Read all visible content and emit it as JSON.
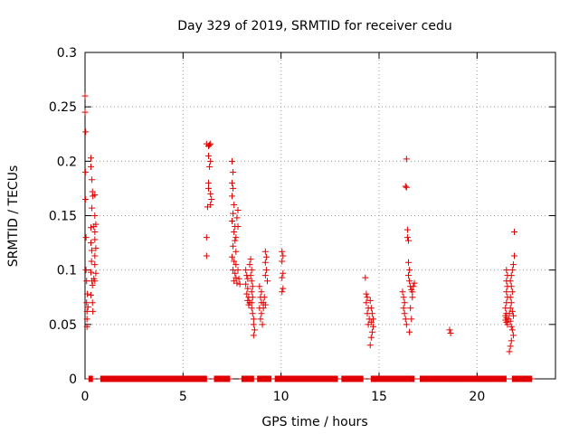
{
  "chart_data": {
    "type": "scatter",
    "title": "Day 329 of 2019, SRMTID for receiver cedu",
    "xlabel": "GPS time / hours",
    "ylabel": "SRMTID / TECUs",
    "xlim": [
      0,
      24
    ],
    "ylim": [
      0,
      0.3
    ],
    "grid": true,
    "xticks": [
      0,
      5,
      10,
      15,
      20
    ],
    "xtick_labels": [
      "0",
      "5",
      "10",
      "15",
      "20"
    ],
    "yticks": [
      0,
      0.05,
      0.1,
      0.15,
      0.2,
      0.25,
      0.3
    ],
    "ytick_labels": [
      "0",
      "0.05",
      "0.1",
      "0.15",
      "0.2",
      "0.25",
      "0.3"
    ],
    "marker": "+",
    "marker_color": "#e00000",
    "series": [
      {
        "name": "SRMTID",
        "points": [
          [
            0.0,
            0.26
          ],
          [
            0.0,
            0.245
          ],
          [
            0.03,
            0.227
          ],
          [
            0.02,
            0.19
          ],
          [
            0.02,
            0.165
          ],
          [
            0.05,
            0.13
          ],
          [
            0.05,
            0.1
          ],
          [
            0.08,
            0.09
          ],
          [
            0.08,
            0.07
          ],
          [
            0.1,
            0.062
          ],
          [
            0.1,
            0.055
          ],
          [
            0.1,
            0.048
          ],
          [
            0.12,
            0.078
          ],
          [
            0.15,
            0.066
          ],
          [
            0.3,
            0.203
          ],
          [
            0.3,
            0.195
          ],
          [
            0.35,
            0.183
          ],
          [
            0.38,
            0.172
          ],
          [
            0.4,
            0.168
          ],
          [
            0.35,
            0.157
          ],
          [
            0.3,
            0.139
          ],
          [
            0.3,
            0.125
          ],
          [
            0.35,
            0.118
          ],
          [
            0.33,
            0.108
          ],
          [
            0.3,
            0.098
          ],
          [
            0.35,
            0.09
          ],
          [
            0.38,
            0.086
          ],
          [
            0.3,
            0.077
          ],
          [
            0.38,
            0.07
          ],
          [
            0.4,
            0.062
          ],
          [
            0.5,
            0.169
          ],
          [
            0.5,
            0.15
          ],
          [
            0.45,
            0.14
          ],
          [
            0.5,
            0.135
          ],
          [
            0.55,
            0.142
          ],
          [
            0.5,
            0.128
          ],
          [
            0.55,
            0.12
          ],
          [
            0.5,
            0.113
          ],
          [
            0.5,
            0.105
          ],
          [
            0.55,
            0.097
          ],
          [
            0.45,
            0.092
          ],
          [
            0.5,
            0.09
          ],
          [
            6.2,
            0.216
          ],
          [
            6.3,
            0.214
          ],
          [
            6.35,
            0.215
          ],
          [
            6.4,
            0.216
          ],
          [
            6.3,
            0.205
          ],
          [
            6.35,
            0.195
          ],
          [
            6.4,
            0.2
          ],
          [
            6.3,
            0.18
          ],
          [
            6.3,
            0.175
          ],
          [
            6.4,
            0.17
          ],
          [
            6.45,
            0.165
          ],
          [
            6.25,
            0.158
          ],
          [
            6.4,
            0.16
          ],
          [
            6.2,
            0.13
          ],
          [
            6.2,
            0.113
          ],
          [
            7.5,
            0.2
          ],
          [
            7.55,
            0.19
          ],
          [
            7.5,
            0.18
          ],
          [
            7.55,
            0.175
          ],
          [
            7.5,
            0.168
          ],
          [
            7.6,
            0.16
          ],
          [
            7.55,
            0.152
          ],
          [
            7.5,
            0.145
          ],
          [
            7.65,
            0.14
          ],
          [
            7.6,
            0.135
          ],
          [
            7.7,
            0.13
          ],
          [
            7.65,
            0.127
          ],
          [
            7.55,
            0.122
          ],
          [
            7.7,
            0.117
          ],
          [
            7.8,
            0.155
          ],
          [
            7.75,
            0.148
          ],
          [
            7.8,
            0.14
          ],
          [
            7.5,
            0.112
          ],
          [
            7.6,
            0.108
          ],
          [
            7.7,
            0.105
          ],
          [
            7.55,
            0.1
          ],
          [
            7.65,
            0.097
          ],
          [
            7.7,
            0.093
          ],
          [
            7.6,
            0.09
          ],
          [
            7.75,
            0.088
          ],
          [
            7.8,
            0.1
          ],
          [
            7.85,
            0.092
          ],
          [
            7.9,
            0.087
          ],
          [
            8.2,
            0.1
          ],
          [
            8.25,
            0.095
          ],
          [
            8.3,
            0.092
          ],
          [
            8.2,
            0.087
          ],
          [
            8.3,
            0.083
          ],
          [
            8.25,
            0.078
          ],
          [
            8.35,
            0.075
          ],
          [
            8.3,
            0.072
          ],
          [
            8.4,
            0.07
          ],
          [
            8.35,
            0.068
          ],
          [
            8.45,
            0.11
          ],
          [
            8.4,
            0.105
          ],
          [
            8.5,
            0.1
          ],
          [
            8.45,
            0.095
          ],
          [
            8.5,
            0.09
          ],
          [
            8.55,
            0.085
          ],
          [
            8.5,
            0.08
          ],
          [
            8.55,
            0.075
          ],
          [
            8.5,
            0.07
          ],
          [
            8.5,
            0.065
          ],
          [
            8.55,
            0.06
          ],
          [
            8.6,
            0.055
          ],
          [
            8.6,
            0.05
          ],
          [
            8.65,
            0.045
          ],
          [
            8.6,
            0.04
          ],
          [
            8.9,
            0.085
          ],
          [
            9.0,
            0.08
          ],
          [
            8.95,
            0.075
          ],
          [
            9.0,
            0.07
          ],
          [
            8.9,
            0.065
          ],
          [
            9.0,
            0.06
          ],
          [
            8.95,
            0.055
          ],
          [
            9.05,
            0.05
          ],
          [
            9.1,
            0.065
          ],
          [
            9.1,
            0.07
          ],
          [
            9.15,
            0.075
          ],
          [
            9.2,
            0.068
          ],
          [
            9.2,
            0.117
          ],
          [
            9.25,
            0.112
          ],
          [
            9.2,
            0.107
          ],
          [
            9.25,
            0.1
          ],
          [
            9.2,
            0.095
          ],
          [
            9.3,
            0.09
          ],
          [
            10.05,
            0.117
          ],
          [
            10.1,
            0.113
          ],
          [
            10.05,
            0.108
          ],
          [
            10.1,
            0.097
          ],
          [
            10.05,
            0.093
          ],
          [
            10.1,
            0.083
          ],
          [
            10.05,
            0.08
          ],
          [
            14.3,
            0.093
          ],
          [
            14.35,
            0.078
          ],
          [
            14.4,
            0.075
          ],
          [
            14.35,
            0.07
          ],
          [
            14.45,
            0.065
          ],
          [
            14.4,
            0.06
          ],
          [
            14.5,
            0.055
          ],
          [
            14.45,
            0.05
          ],
          [
            14.55,
            0.072
          ],
          [
            14.6,
            0.065
          ],
          [
            14.65,
            0.06
          ],
          [
            14.7,
            0.055
          ],
          [
            14.6,
            0.052
          ],
          [
            14.7,
            0.048
          ],
          [
            14.65,
            0.043
          ],
          [
            14.6,
            0.038
          ],
          [
            14.55,
            0.031
          ],
          [
            16.2,
            0.08
          ],
          [
            16.25,
            0.075
          ],
          [
            16.3,
            0.07
          ],
          [
            16.25,
            0.065
          ],
          [
            16.3,
            0.06
          ],
          [
            16.35,
            0.055
          ],
          [
            16.4,
            0.05
          ],
          [
            16.4,
            0.202
          ],
          [
            16.35,
            0.177
          ],
          [
            16.4,
            0.176
          ],
          [
            16.45,
            0.137
          ],
          [
            16.45,
            0.13
          ],
          [
            16.5,
            0.127
          ],
          [
            16.5,
            0.107
          ],
          [
            16.55,
            0.1
          ],
          [
            16.5,
            0.095
          ],
          [
            16.55,
            0.09
          ],
          [
            16.6,
            0.085
          ],
          [
            16.65,
            0.082
          ],
          [
            16.7,
            0.08
          ],
          [
            16.75,
            0.085
          ],
          [
            16.8,
            0.088
          ],
          [
            16.7,
            0.075
          ],
          [
            16.6,
            0.065
          ],
          [
            16.65,
            0.055
          ],
          [
            16.55,
            0.043
          ],
          [
            18.6,
            0.045
          ],
          [
            18.65,
            0.042
          ],
          [
            21.5,
            0.1
          ],
          [
            21.55,
            0.095
          ],
          [
            21.5,
            0.09
          ],
          [
            21.55,
            0.085
          ],
          [
            21.5,
            0.08
          ],
          [
            21.55,
            0.075
          ],
          [
            21.5,
            0.07
          ],
          [
            21.45,
            0.065
          ],
          [
            21.5,
            0.06
          ],
          [
            21.45,
            0.058
          ],
          [
            21.5,
            0.056
          ],
          [
            21.45,
            0.054
          ],
          [
            21.5,
            0.052
          ],
          [
            21.55,
            0.05
          ],
          [
            21.6,
            0.055
          ],
          [
            21.65,
            0.06
          ],
          [
            21.7,
            0.065
          ],
          [
            21.75,
            0.07
          ],
          [
            21.7,
            0.075
          ],
          [
            21.8,
            0.08
          ],
          [
            21.75,
            0.085
          ],
          [
            21.7,
            0.09
          ],
          [
            21.75,
            0.095
          ],
          [
            21.8,
            0.1
          ],
          [
            21.85,
            0.105
          ],
          [
            21.9,
            0.113
          ],
          [
            21.9,
            0.135
          ],
          [
            21.8,
            0.062
          ],
          [
            21.85,
            0.058
          ],
          [
            21.7,
            0.053
          ],
          [
            21.75,
            0.048
          ],
          [
            21.8,
            0.045
          ],
          [
            21.85,
            0.04
          ],
          [
            21.75,
            0.035
          ],
          [
            21.7,
            0.03
          ],
          [
            21.65,
            0.025
          ]
        ],
        "baseline_ranges": [
          [
            0.2,
            0.4
          ],
          [
            0.8,
            6.2
          ],
          [
            6.6,
            7.4
          ],
          [
            8.0,
            8.6
          ],
          [
            8.8,
            9.5
          ],
          [
            9.7,
            12.9
          ],
          [
            13.1,
            14.2
          ],
          [
            14.6,
            16.8
          ],
          [
            17.1,
            21.5
          ],
          [
            21.8,
            22.8
          ]
        ]
      }
    ]
  }
}
